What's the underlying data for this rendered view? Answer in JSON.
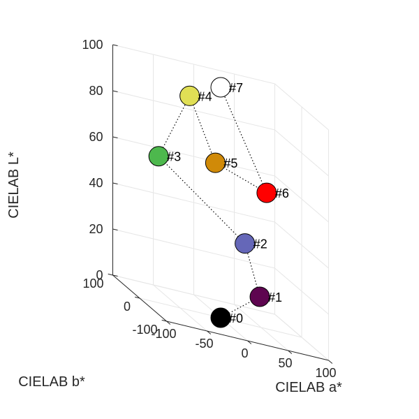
{
  "chart_data": {
    "type": "scatter",
    "projection": "3d",
    "grid": true,
    "axes": {
      "a": {
        "label": "CIELAB a*",
        "range": [
          -100,
          100
        ],
        "ticks": [
          -100,
          -50,
          0,
          50,
          100
        ]
      },
      "b": {
        "label": "CIELAB b*",
        "range": [
          -100,
          100
        ],
        "ticks": [
          -100,
          0,
          100
        ]
      },
      "L": {
        "label": "CIELAB L*",
        "range": [
          0,
          100
        ],
        "ticks": [
          0,
          20,
          40,
          60,
          80,
          100
        ]
      }
    },
    "points": [
      {
        "label": "#0",
        "L": 0,
        "a": 0,
        "b": 0,
        "color": "#000000"
      },
      {
        "label": "#1",
        "L": 15,
        "a": 40,
        "b": -25,
        "color": "#5e0550"
      },
      {
        "label": "#2",
        "L": 38,
        "a": 15,
        "b": -45,
        "color": "#6567b8"
      },
      {
        "label": "#3",
        "L": 60,
        "a": -60,
        "b": 50,
        "color": "#4db84d"
      },
      {
        "label": "#4",
        "L": 88,
        "a": -15,
        "b": 70,
        "color": "#e0df55"
      },
      {
        "label": "#5",
        "L": 62,
        "a": 15,
        "b": 65,
        "color": "#d08a08"
      },
      {
        "label": "#6",
        "L": 54,
        "a": 80,
        "b": 70,
        "color": "#ff0000"
      },
      {
        "label": "#7",
        "L": 100,
        "a": 0,
        "b": 0,
        "color": "#ffffff"
      }
    ],
    "path_order": [
      "#0",
      "#1",
      "#2",
      "#3",
      "#4",
      "#5",
      "#6",
      "#7"
    ]
  }
}
